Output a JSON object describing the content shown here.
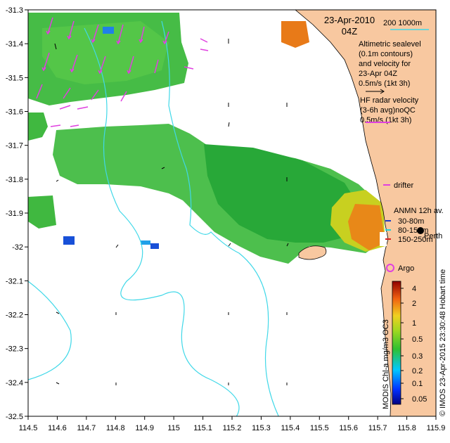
{
  "title": {
    "date": "23-Apr-2010",
    "time": "04Z"
  },
  "scale_bar": {
    "label": "200  1000m"
  },
  "legend": {
    "altimetric_lines": [
      "Altimetric sealevel",
      "(0.1m contours)",
      "and velocity for",
      "23-Apr 04Z",
      "0.5m/s (1kt 3h)"
    ],
    "hf_lines": [
      "HF radar velocity",
      "(3-6h avg)noQC",
      "0.5m/s (1kt 3h)"
    ],
    "drifter_label": "drifter",
    "anmn_title": "ANMN 12h av.",
    "anmn_items": [
      {
        "label": "30-80m",
        "color": "#1a3cc8"
      },
      {
        "label": "80-150m",
        "color": "#20d0d8"
      },
      {
        "label": "150-250m",
        "color": "#d82020"
      }
    ],
    "perth_label": "Perth",
    "argo_label": "Argo"
  },
  "colorbar": {
    "label": "MODIS Chl-a mg/m3 OC3",
    "ticks": [
      "4",
      "2",
      "1",
      "0.5",
      "0.3",
      "0.2",
      "0.1",
      "0.05"
    ]
  },
  "credit": "© IMOS 23-Apr-2015 23:30:48 Hobart time",
  "axes": {
    "x_ticks": [
      "114.5",
      "114.6",
      "114.7",
      "114.8",
      "114.9",
      "115",
      "115.1",
      "115.2",
      "115.3",
      "115.4",
      "115.5",
      "115.6",
      "115.7",
      "115.8",
      "115.9"
    ],
    "y_ticks": [
      "-31.3",
      "-31.4",
      "-31.5",
      "-31.6",
      "-31.7",
      "-31.8",
      "-31.9",
      "-32",
      "-32.1",
      "-32.2",
      "-32.3",
      "-32.4",
      "-32.5"
    ]
  },
  "colors": {
    "land": "#f8c8a0",
    "bathymetry": "#40d8e8",
    "hf_radar": "#e040e0",
    "chl_low": "#28b028",
    "chl_high": "#e06010"
  }
}
